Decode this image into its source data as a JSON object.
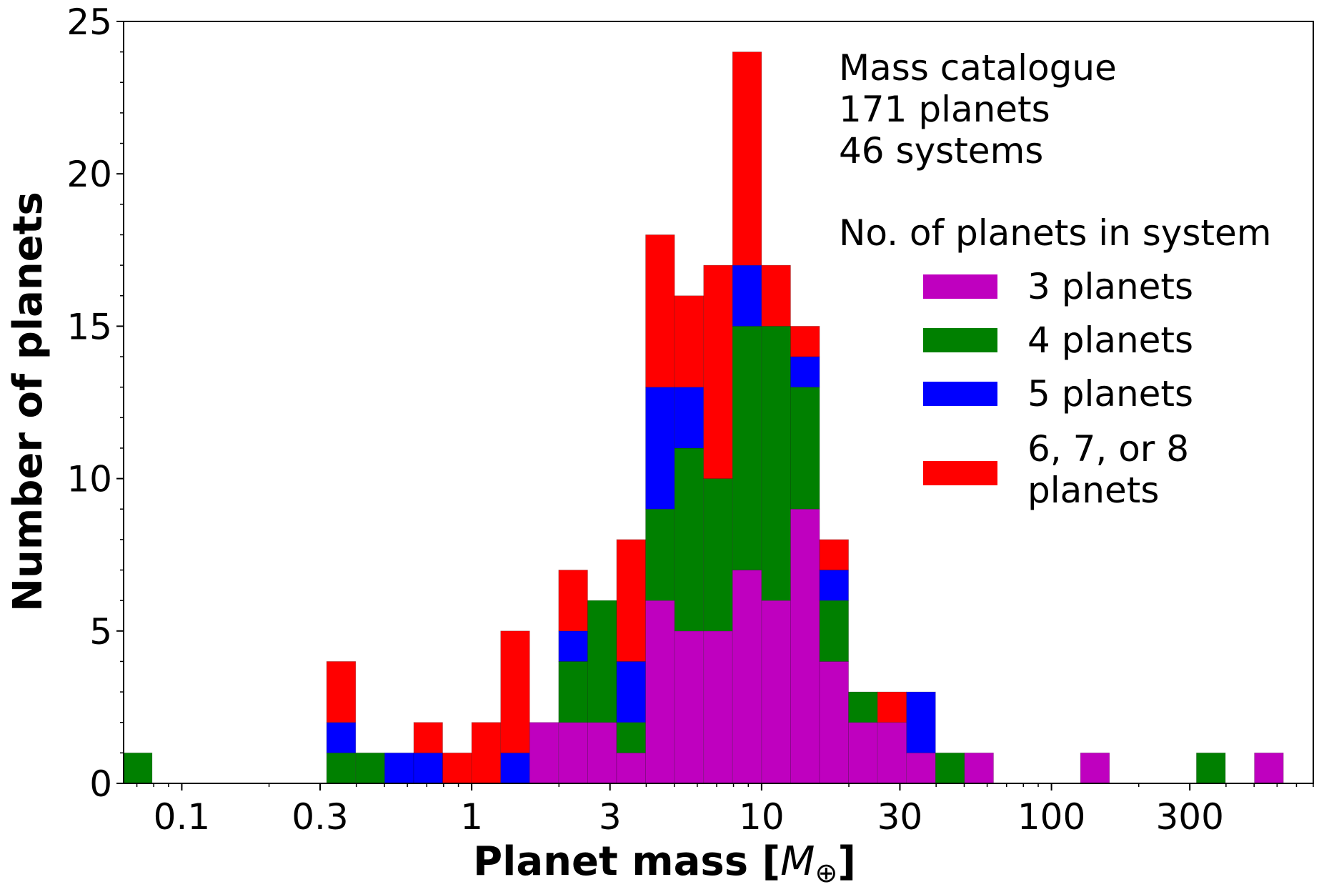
{
  "chart_data": {
    "type": "bar",
    "subtype": "stacked-histogram",
    "xscale": "log",
    "xlim": [
      0.063,
      800
    ],
    "ylim": [
      0,
      25
    ],
    "xlabel_prefix": "Planet mass [",
    "xlabel_symbol": "M",
    "xlabel_subscript": "⊕",
    "xlabel_suffix": "]",
    "ylabel": "Number of planets",
    "x_ticks": [
      {
        "value": 0.1,
        "label": "0.1"
      },
      {
        "value": 0.3,
        "label": "0.3"
      },
      {
        "value": 1,
        "label": "1"
      },
      {
        "value": 3,
        "label": "3"
      },
      {
        "value": 10,
        "label": "10"
      },
      {
        "value": 30,
        "label": "30"
      },
      {
        "value": 100,
        "label": "100"
      },
      {
        "value": 300,
        "label": "300"
      }
    ],
    "y_ticks": [
      {
        "value": 0,
        "label": "0"
      },
      {
        "value": 5,
        "label": "5"
      },
      {
        "value": 10,
        "label": "10"
      },
      {
        "value": 15,
        "label": "15"
      },
      {
        "value": 20,
        "label": "20"
      },
      {
        "value": 25,
        "label": "25"
      }
    ],
    "annotation": [
      "Mass catalogue",
      "171 planets",
      "46 systems"
    ],
    "legend_title": "No. of planets in system",
    "legend_position": "top-right",
    "bin_edges": [
      0.063,
      0.079,
      0.1,
      0.126,
      0.158,
      0.2,
      0.251,
      0.316,
      0.398,
      0.501,
      0.631,
      0.794,
      1.0,
      1.259,
      1.585,
      1.995,
      2.512,
      3.162,
      3.981,
      5.012,
      6.31,
      7.943,
      10.0,
      12.59,
      15.85,
      19.95,
      25.12,
      31.62,
      39.81,
      50.12,
      63.1,
      79.43,
      100.0,
      125.9,
      158.5,
      199.5,
      251.2,
      316.2,
      398.1,
      501.2,
      631.0
    ],
    "series": [
      {
        "name": "3 planets",
        "color": "#bf00bf",
        "values": [
          0,
          0,
          0,
          0,
          0,
          0,
          0,
          0,
          0,
          0,
          0,
          0,
          0,
          0,
          2,
          2,
          2,
          1,
          6,
          5,
          5,
          7,
          6,
          9,
          4,
          2,
          2,
          1,
          0,
          1,
          0,
          0,
          0,
          1,
          0,
          0,
          0,
          0,
          0,
          1
        ]
      },
      {
        "name": "4 planets",
        "color": "#008000",
        "values": [
          1,
          0,
          0,
          0,
          0,
          0,
          0,
          1,
          1,
          0,
          0,
          0,
          0,
          0,
          0,
          2,
          4,
          1,
          3,
          6,
          5,
          8,
          9,
          4,
          2,
          1,
          0,
          0,
          1,
          0,
          0,
          0,
          0,
          0,
          0,
          0,
          0,
          1,
          0,
          0
        ]
      },
      {
        "name": "5 planets",
        "color": "#0000ff",
        "values": [
          0,
          0,
          0,
          0,
          0,
          0,
          0,
          1,
          0,
          1,
          1,
          0,
          0,
          1,
          0,
          1,
          0,
          2,
          4,
          2,
          0,
          2,
          0,
          1,
          1,
          0,
          0,
          2,
          0,
          0,
          0,
          0,
          0,
          0,
          0,
          0,
          0,
          0,
          0,
          0
        ]
      },
      {
        "name": "6, 7, or 8 planets",
        "legend_lines": [
          "6, 7, or 8",
          "planets"
        ],
        "color": "#ff0000",
        "values": [
          0,
          0,
          0,
          0,
          0,
          0,
          0,
          2,
          0,
          0,
          1,
          1,
          2,
          4,
          0,
          2,
          0,
          4,
          5,
          3,
          7,
          7,
          2,
          1,
          1,
          0,
          1,
          0,
          0,
          0,
          0,
          0,
          0,
          0,
          0,
          0,
          0,
          0,
          0,
          0
        ]
      }
    ]
  }
}
